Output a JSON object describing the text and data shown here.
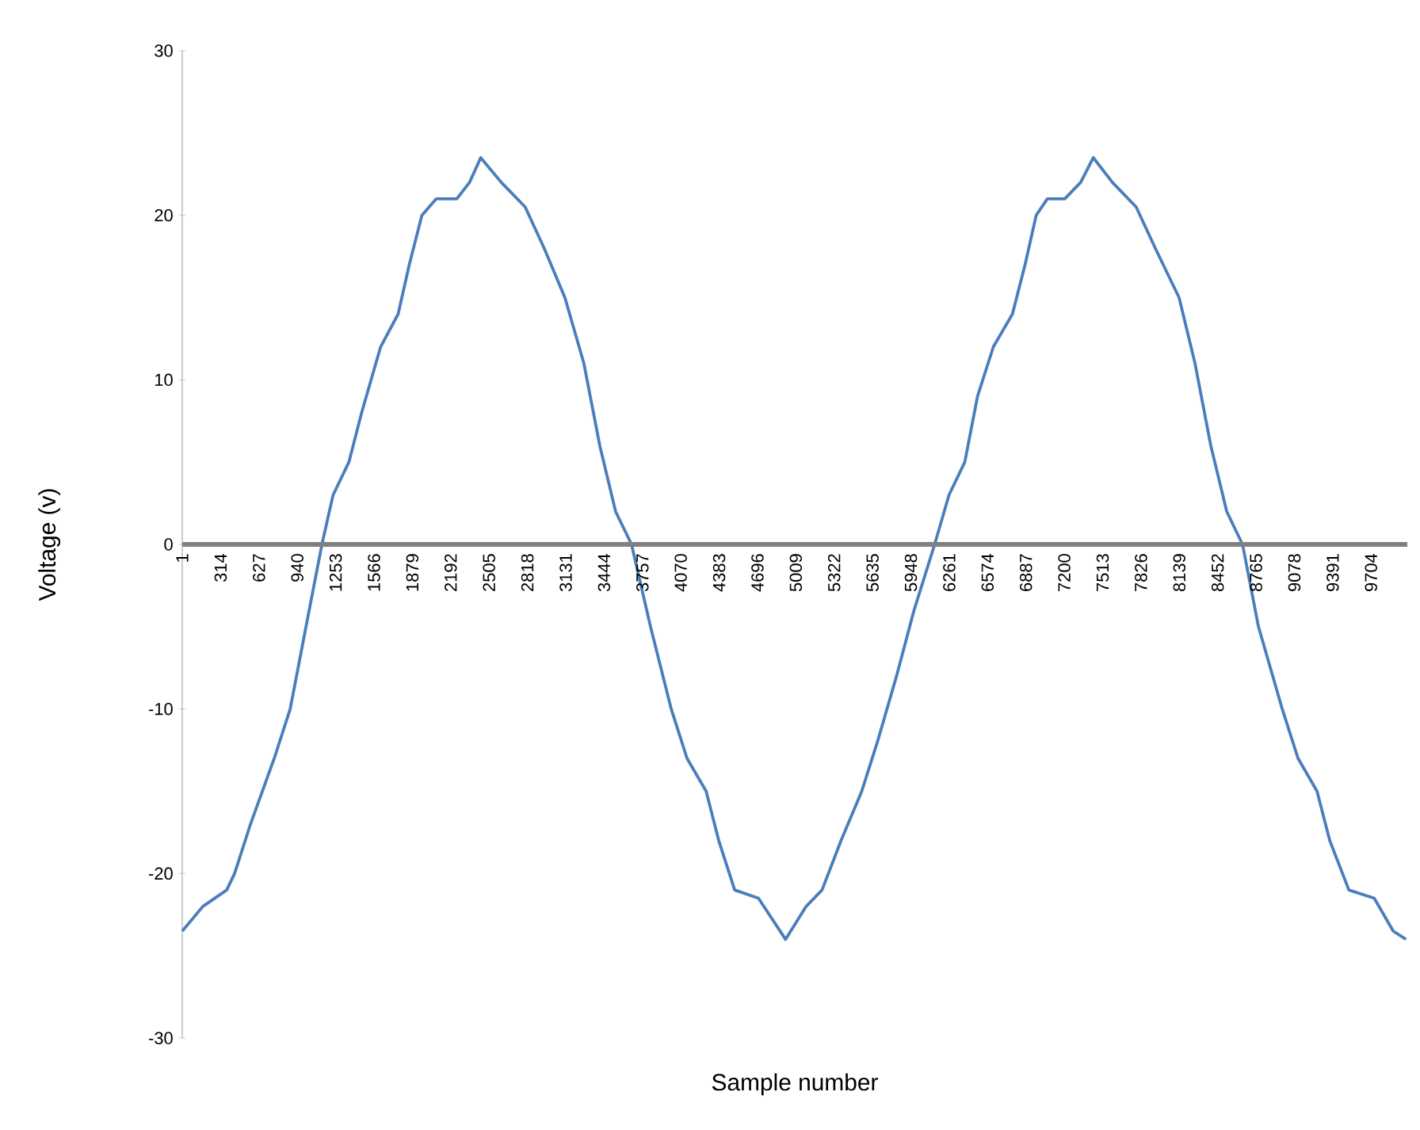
{
  "chart_data": {
    "type": "line",
    "xlabel": "Sample number",
    "ylabel": "Voltage (v)",
    "xlim": [
      1,
      10000
    ],
    "ylim": [
      -30,
      30
    ],
    "xticks": [
      1,
      314,
      627,
      940,
      1253,
      1566,
      1879,
      2192,
      2505,
      2818,
      3131,
      3444,
      3757,
      4070,
      4383,
      4696,
      5009,
      5322,
      5635,
      5948,
      6261,
      6574,
      6887,
      7200,
      7513,
      7826,
      8139,
      8452,
      8765,
      9078,
      9391,
      9704
    ],
    "yticks": [
      -30,
      -20,
      -10,
      0,
      10,
      20,
      30
    ],
    "series": [
      {
        "color": "#4a7ebb",
        "x": [
          1,
          169,
          364,
          428,
          558,
          752,
          882,
          1011,
          1141,
          1232,
          1361,
          1465,
          1620,
          1763,
          1854,
          1957,
          2074,
          2242,
          2346,
          2437,
          2605,
          2800,
          2955,
          3124,
          3279,
          3409,
          3538,
          3668,
          3823,
          3992,
          4121,
          4277,
          4380,
          4510,
          4704,
          4925,
          5093,
          5223,
          5378,
          5547,
          5675,
          5831,
          5974,
          6142,
          6259,
          6388,
          6492,
          6621,
          6777,
          6880,
          6971,
          7062,
          7204,
          7334,
          7437,
          7593,
          7787,
          7943,
          8137,
          8267,
          8396,
          8526,
          8655,
          8785,
          8979,
          9108,
          9263,
          9367,
          9523,
          9730,
          9885,
          9989
        ],
        "values": [
          -23.5,
          -22,
          -21,
          -20,
          -17,
          -13,
          -10,
          -5,
          0,
          3,
          5,
          8,
          12,
          14,
          17,
          20,
          21,
          21,
          22,
          23.5,
          22,
          20.5,
          18,
          15,
          11,
          6,
          2,
          0,
          -5,
          -10,
          -13,
          -15,
          -18,
          -21,
          -21.5,
          -24,
          -22,
          -21,
          -18,
          -15,
          -12,
          -8,
          -4,
          0,
          3,
          5,
          9,
          12,
          14,
          17,
          20,
          21,
          21,
          22,
          23.5,
          22,
          20.5,
          18,
          15,
          11,
          6,
          2,
          0,
          -5,
          -10,
          -13,
          -15,
          -18,
          -21,
          -21.5,
          -23.5,
          -24
        ]
      }
    ]
  }
}
